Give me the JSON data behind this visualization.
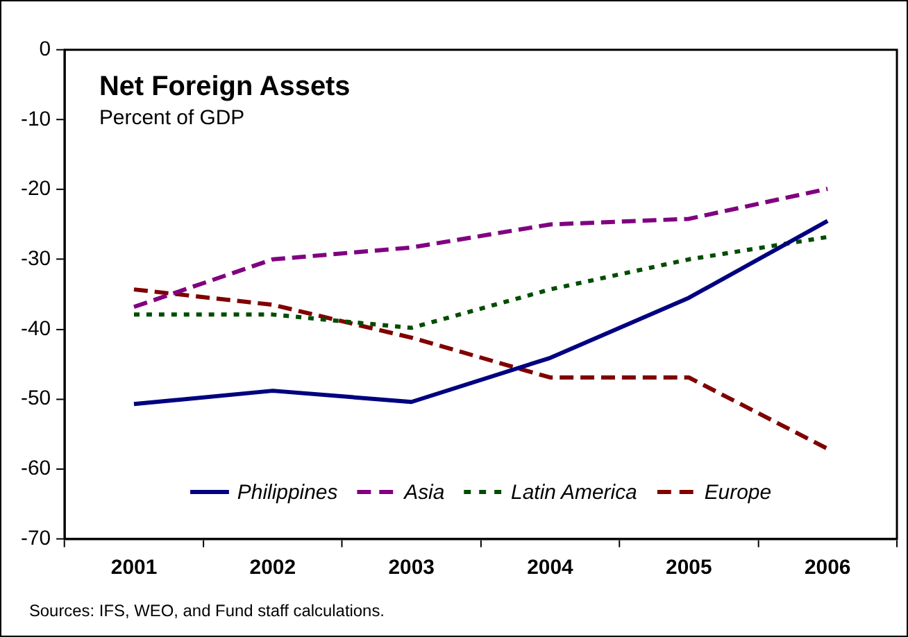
{
  "chart_data": {
    "type": "line",
    "title": "Net Foreign Assets",
    "subtitle": "Percent of GDP",
    "categories": [
      "2001",
      "2002",
      "2003",
      "2004",
      "2005",
      "2006"
    ],
    "series": [
      {
        "name": "Philippines",
        "color": "#000080",
        "line_style": "solid",
        "values": [
          -50.7,
          -48.8,
          -50.4,
          -44.1,
          -35.5,
          -24.5
        ]
      },
      {
        "name": "Asia",
        "color": "#800080",
        "line_style": "dashed",
        "values": [
          -36.8,
          -30.0,
          -28.3,
          -25.0,
          -24.2,
          -19.9
        ]
      },
      {
        "name": "Latin America",
        "color": "#004d00",
        "line_style": "dotted",
        "values": [
          -37.9,
          -37.9,
          -39.8,
          -34.3,
          -30.0,
          -26.8
        ]
      },
      {
        "name": "Europe",
        "color": "#800000",
        "line_style": "dashed",
        "values": [
          -34.3,
          -36.5,
          -41.2,
          -46.9,
          -46.9,
          -57.1
        ]
      }
    ],
    "ylim": [
      -70,
      0
    ],
    "yticks": [
      0,
      -10,
      -20,
      -30,
      -40,
      -50,
      -60,
      -70
    ],
    "grid": false,
    "legend": "bottom",
    "marker": "none",
    "annotations": [
      "Sources: IFS, WEO, and Fund staff calculations."
    ]
  }
}
